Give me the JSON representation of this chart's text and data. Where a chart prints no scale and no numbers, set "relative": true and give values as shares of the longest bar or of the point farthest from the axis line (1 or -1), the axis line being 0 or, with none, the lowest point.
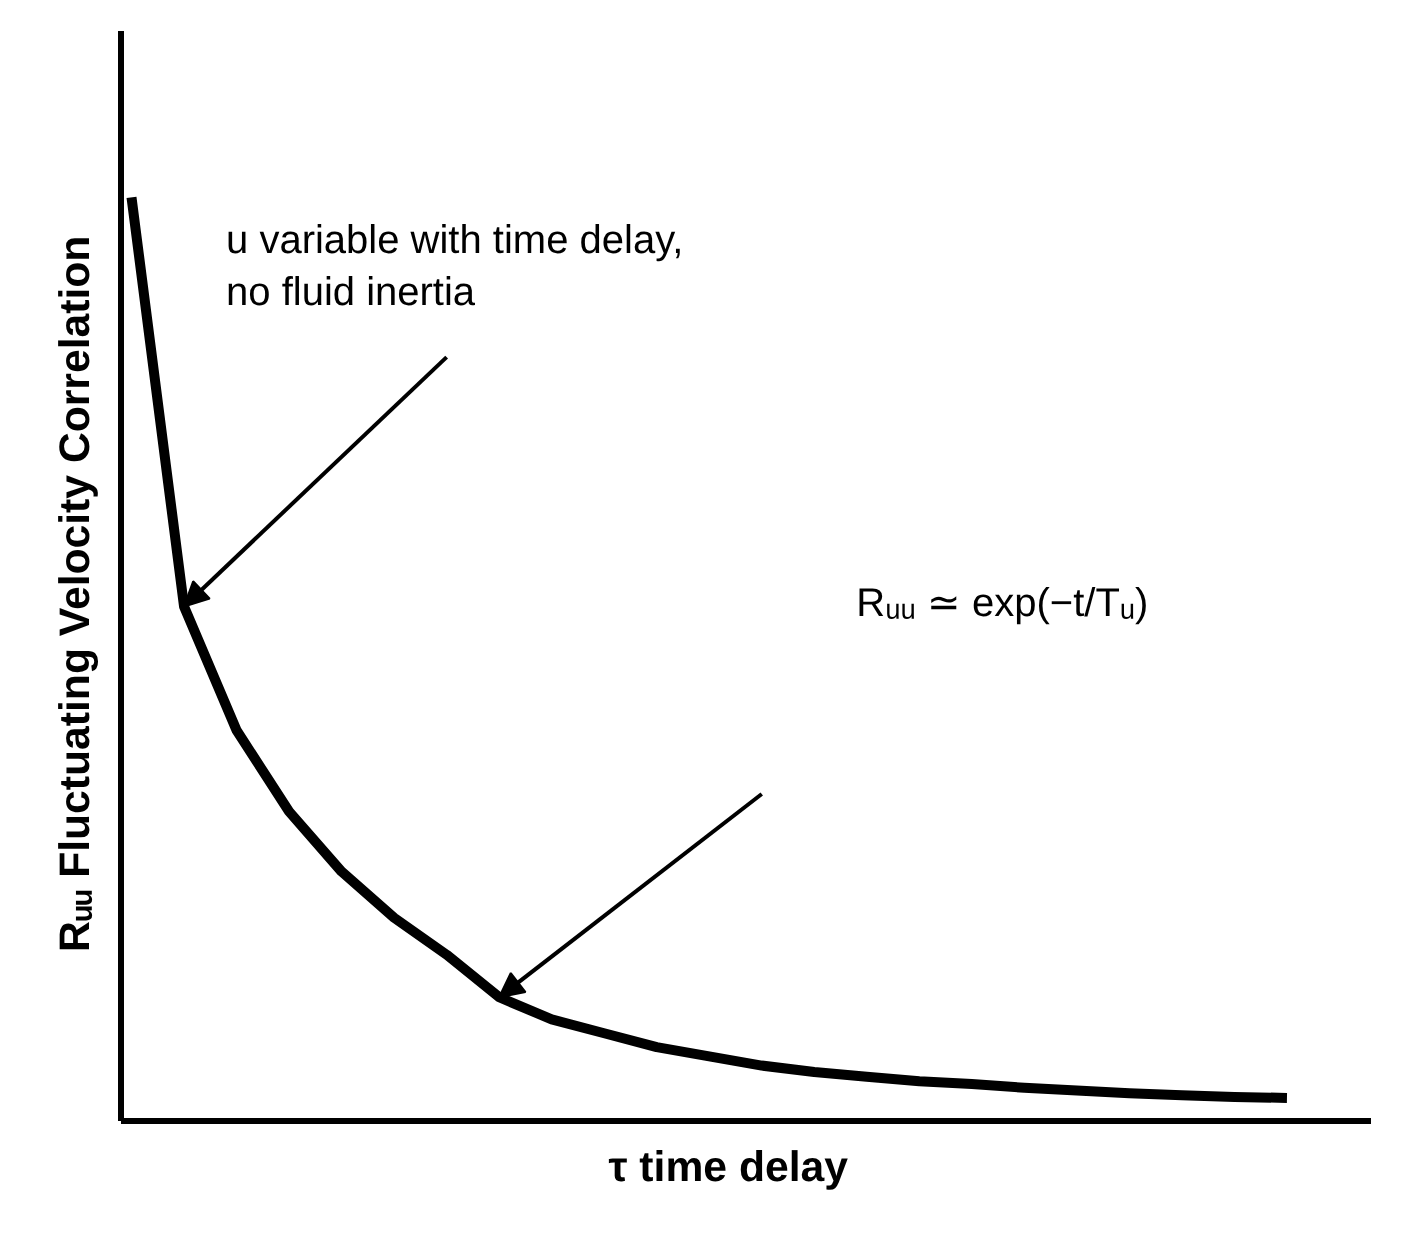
{
  "chart_data": {
    "type": "line",
    "relative": true,
    "xlabel": "τ    time delay",
    "ylabel": "Rᵤᵤ    Fluctuating Velocity Correlation",
    "grid": false,
    "marker": "none",
    "line_style": "solid",
    "categories": [
      null,
      null,
      null,
      null,
      null,
      null,
      null,
      null,
      null,
      null,
      null,
      null,
      null,
      null,
      null,
      null,
      null,
      null,
      null,
      null,
      null,
      null,
      null
    ],
    "series": [
      {
        "color": "#000000",
        "values": [
          1.0,
          0.557,
          0.423,
          0.335,
          0.27,
          0.22,
          0.18,
          0.134,
          0.11,
          0.095,
          0.08,
          0.07,
          0.06,
          0.053,
          0.048,
          0.043,
          0.04,
          0.036,
          0.033,
          0.03,
          0.028,
          0.026,
          0.025
        ]
      }
    ],
    "annotations": [
      "u variable with time delay,\nno fluid inertia",
      "Rᵤᵤ ≃ exp(−t/Tᵤ)"
    ]
  }
}
